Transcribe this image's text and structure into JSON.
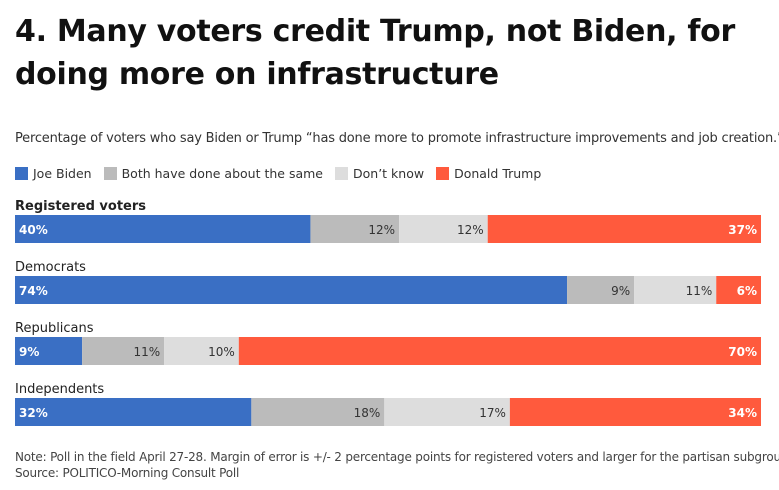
{
  "header": {
    "title": "4. Many voters credit Trump, not Biden, for doing more on infrastructure",
    "subtitle": "Percentage of voters who say Biden or Trump “has done more to promote infrastructure improvements and job creation.”"
  },
  "footer": {
    "note": "Note: Poll in the field April 27-28. Margin of error is +/- 2 percentage points for registered voters and larger for the partisan subgroups.",
    "source": "Source: POLITICO-Morning Consult Poll"
  },
  "colors": {
    "biden": "#3a6fc4",
    "same": "#bbbbbb",
    "dont_know": "#dddddd",
    "trump": "#ff5a3d"
  },
  "chart_data": {
    "type": "bar",
    "orientation": "horizontal",
    "stacked": true,
    "title": "4. Many voters credit Trump, not Biden, for doing more on infrastructure",
    "subtitle": "Percentage of voters who say Biden or Trump “has done more to promote infrastructure improvements and job creation.”",
    "legend_position": "top-left",
    "grid": false,
    "categories": [
      "Registered voters",
      "Democrats",
      "Republicans",
      "Independents"
    ],
    "category_bold": [
      true,
      false,
      false,
      false
    ],
    "series": [
      {
        "name": "Joe Biden",
        "color": "#3a6fc4",
        "values": [
          40,
          74,
          9,
          32
        ],
        "labels": [
          "40%",
          "74%",
          "9%",
          "32%"
        ]
      },
      {
        "name": "Both have done about the same",
        "color": "#bbbbbb",
        "values": [
          12,
          9,
          11,
          18
        ],
        "labels": [
          "12%",
          "9%",
          "11%",
          "18%"
        ]
      },
      {
        "name": "Don’t know",
        "color": "#dddddd",
        "values": [
          12,
          11,
          10,
          17
        ],
        "labels": [
          "12%",
          "11%",
          "10%",
          "17%"
        ]
      },
      {
        "name": "Donald Trump",
        "color": "#ff5a3d",
        "values": [
          37,
          6,
          70,
          34
        ],
        "labels": [
          "37%",
          "6%",
          "70%",
          "34%"
        ]
      }
    ]
  }
}
